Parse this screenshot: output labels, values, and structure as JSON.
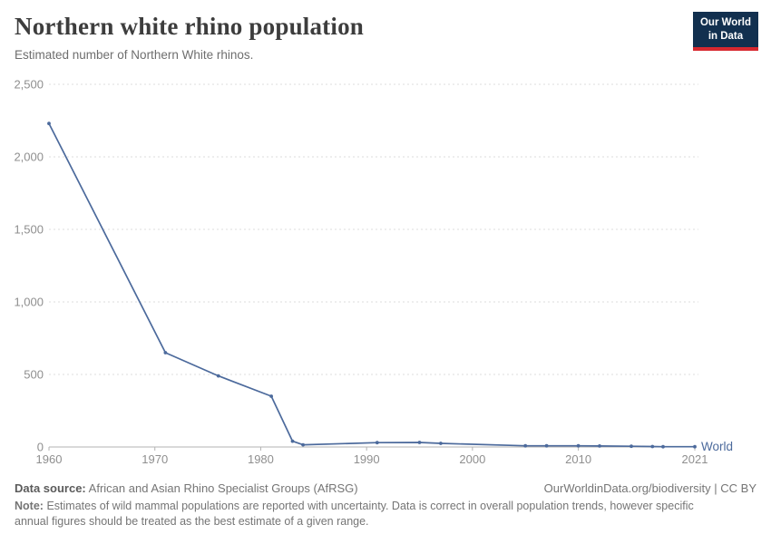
{
  "header": {
    "title": "Northern white rhino population",
    "subtitle": "Estimated number of Northern White rhinos."
  },
  "logo": {
    "line1": "Our World",
    "line2": "in Data"
  },
  "colors": {
    "line": "#4C6A9C",
    "entity_label": "#4C6A9C",
    "grid": "#DDDDDD",
    "axis": "#B3B3B3",
    "tick_label": "#8F8F8F",
    "title_text": "#3D3D3D",
    "subtitle_text": "#6E6E6E",
    "footer_text": "#757575",
    "logo_bg": "#12304F",
    "logo_accent": "#D7282F",
    "logo_text": "#FFFFFF"
  },
  "chart_data": {
    "type": "line",
    "title": "Northern white rhino population",
    "subtitle": "Estimated number of Northern White rhinos.",
    "xlabel": "",
    "ylabel": "",
    "xlim": [
      1960,
      2021
    ],
    "ylim": [
      0,
      2500
    ],
    "x_ticks": [
      1960,
      1970,
      1980,
      1990,
      2000,
      2010,
      2021
    ],
    "y_ticks": [
      0,
      500,
      1000,
      1500,
      2000,
      2500
    ],
    "grid": "horizontal-dashed",
    "legend_position": "entity-label-at-line-end",
    "series": [
      {
        "name": "World",
        "points": [
          [
            1960,
            2230
          ],
          [
            1971,
            650
          ],
          [
            1976,
            490
          ],
          [
            1981,
            350
          ],
          [
            1983,
            40
          ],
          [
            1984,
            15
          ],
          [
            1991,
            30
          ],
          [
            1995,
            31
          ],
          [
            1997,
            25
          ],
          [
            2005,
            8
          ],
          [
            2007,
            8
          ],
          [
            2010,
            8
          ],
          [
            2012,
            7
          ],
          [
            2015,
            5
          ],
          [
            2017,
            3
          ],
          [
            2018,
            2
          ],
          [
            2021,
            2
          ]
        ]
      }
    ]
  },
  "footer": {
    "datasource_label": "Data source:",
    "datasource": "African and Asian Rhino Specialist Groups (AfRSG)",
    "license": "OurWorldinData.org/biodiversity | CC BY",
    "note_label": "Note:",
    "note": "Estimates of wild mammal populations are reported with uncertainty. Data is correct in overall population trends, however specific annual figures should be treated as the best estimate of a given range."
  }
}
